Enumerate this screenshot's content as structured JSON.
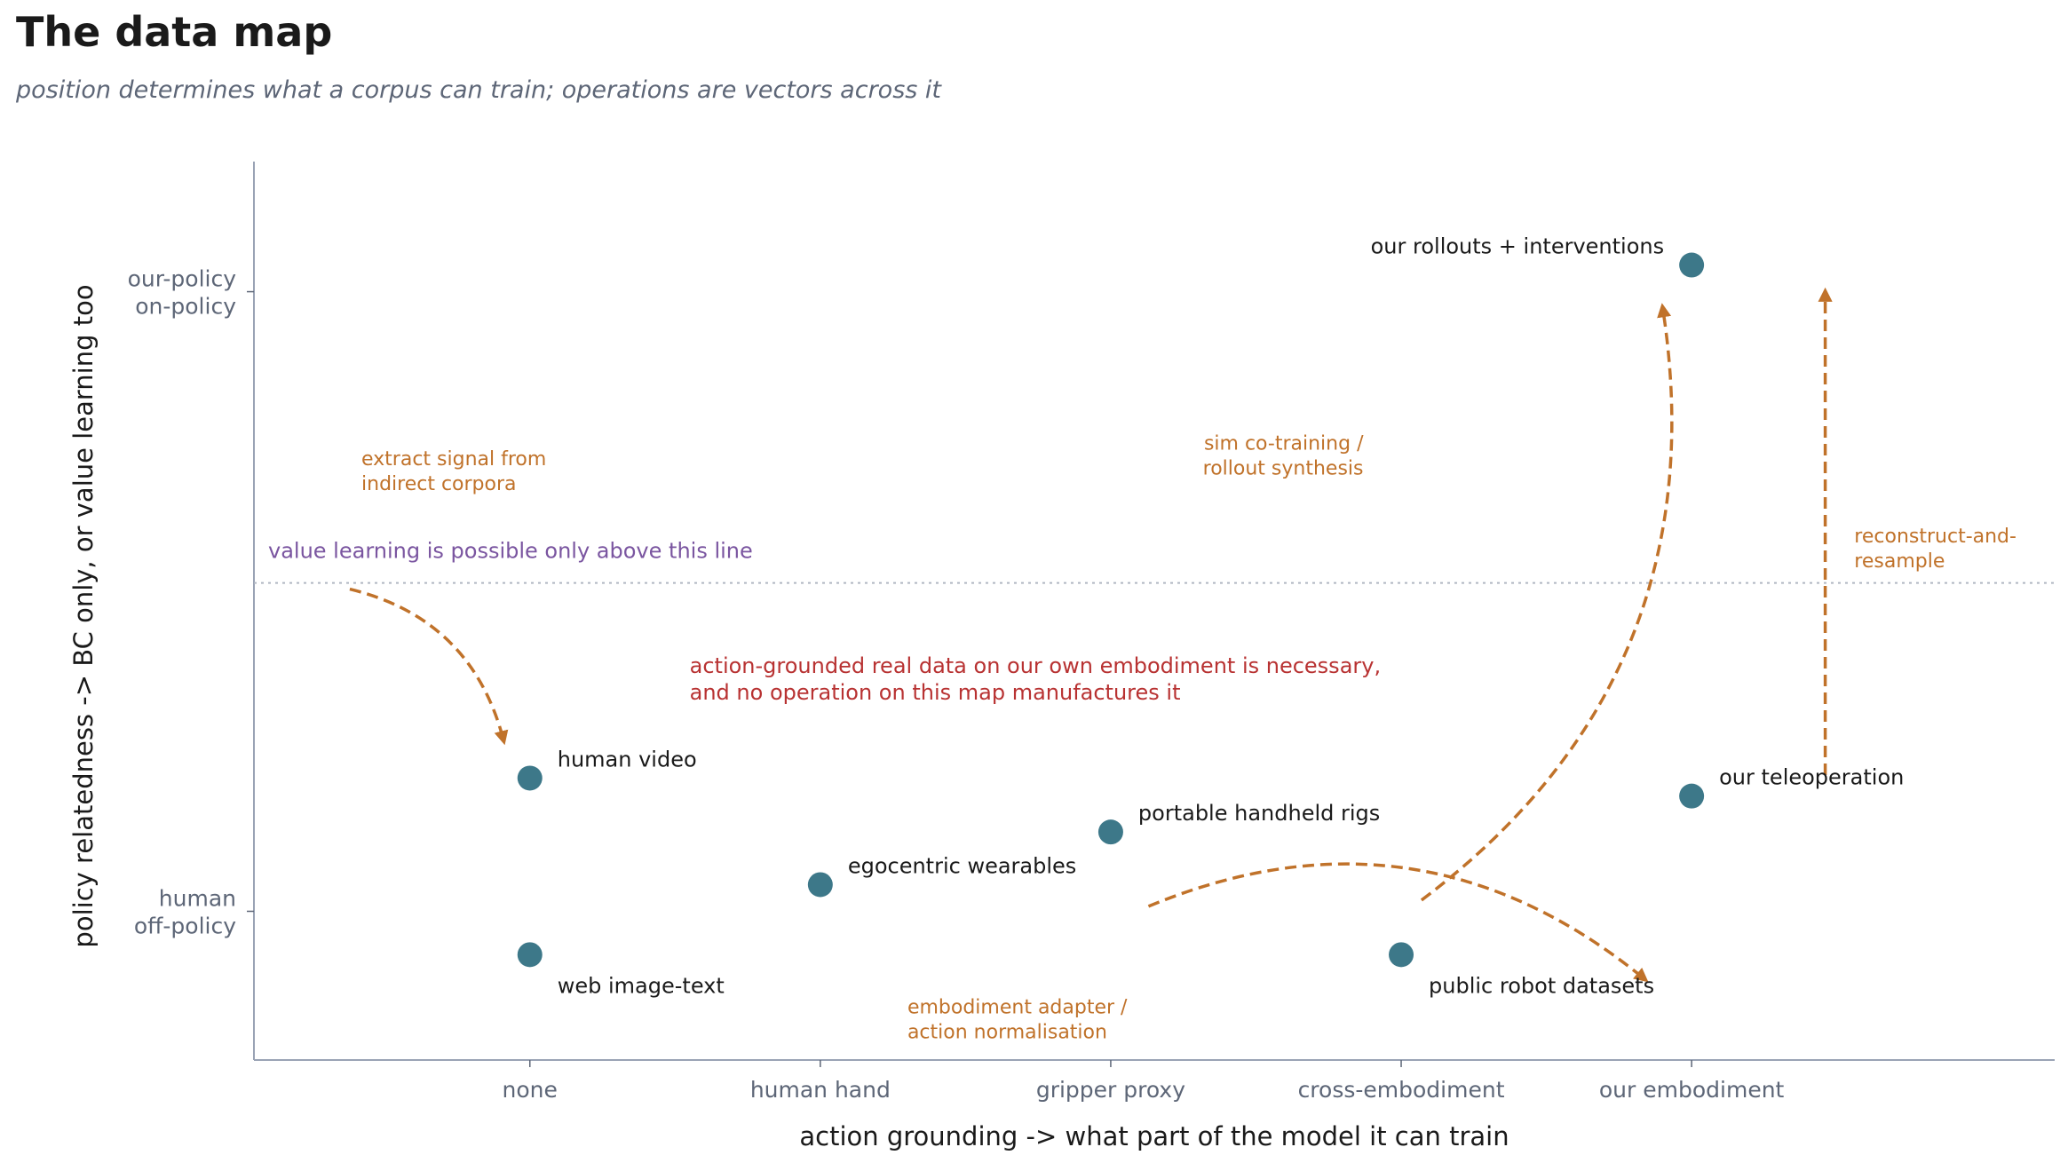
{
  "title": "The data map",
  "subtitle": "position determines what a corpus can train; operations are vectors across it",
  "colors": {
    "point": "#3d7889",
    "operation": "#c0722a",
    "threshold": "#7a55a0",
    "note": "#b83232",
    "axis": "#9aa3b5",
    "text": "#1a1a1a",
    "muted": "#5d6677"
  },
  "chart_data": {
    "type": "scatter",
    "title": "The data map",
    "subtitle": "position determines what a corpus can train; operations are vectors across it",
    "xlabel": "action grounding  ->  what part of the model it can train",
    "ylabel": "policy relatedness  ->  BC only, or value learning too",
    "x_categories": [
      "none",
      "human hand",
      "gripper proxy",
      "cross-embodiment",
      "our embodiment"
    ],
    "y_ticks": [
      {
        "value": 0,
        "lines": [
          "human",
          "off-policy"
        ]
      },
      {
        "value": 1,
        "lines": [
          "our-policy",
          "on-policy"
        ]
      }
    ],
    "xlim": [
      -0.95,
      5.25
    ],
    "ylim": [
      -0.24,
      1.21
    ],
    "grid": false,
    "legend": "none",
    "points": [
      {
        "label": "human video",
        "x": 0,
        "y": 0.215,
        "label_pos": "upper-right"
      },
      {
        "label": "web image-text",
        "x": 0,
        "y": -0.07,
        "label_pos": "lower-right"
      },
      {
        "label": "egocentric wearables",
        "x": 1,
        "y": 0.043,
        "label_pos": "upper-right"
      },
      {
        "label": "portable handheld rigs",
        "x": 2,
        "y": 0.128,
        "label_pos": "upper-right"
      },
      {
        "label": "public robot datasets",
        "x": 3,
        "y": -0.07,
        "label_pos": "lower-right"
      },
      {
        "label": "our teleoperation",
        "x": 4,
        "y": 0.186,
        "label_pos": "upper-right"
      },
      {
        "label": "our rollouts + interventions",
        "x": 4,
        "y": 1.043,
        "label_pos": "upper-left"
      }
    ],
    "threshold": {
      "y": 0.53,
      "label": "value learning is possible only above this line"
    },
    "operations": [
      {
        "label_lines": [
          "extract signal from",
          "indirect corpora"
        ],
        "from": [
          -0.62,
          0.52
        ],
        "to": [
          -0.09,
          0.275
        ],
        "bend": -0.3
      },
      {
        "label_lines": [
          "embodiment adapter /",
          "action normalisation"
        ],
        "from": [
          2.13,
          0.008
        ],
        "to": [
          3.84,
          -0.11
        ],
        "bend": -0.3
      },
      {
        "label_lines": [
          "sim co-training /",
          "rollout synthesis"
        ],
        "from": [
          3.07,
          0.018
        ],
        "to": [
          3.9,
          0.975
        ],
        "bend": 0.3
      },
      {
        "label_lines": [
          "reconstruct-and-",
          "resample"
        ],
        "from": [
          4.46,
          0.22
        ],
        "to": [
          4.46,
          1.0
        ],
        "bend": 0
      }
    ],
    "annotation": {
      "lines": [
        "action-grounded real data on our own embodiment is necessary,",
        "and no operation on this map manufactures it"
      ],
      "x": 0.55,
      "y": 0.385
    }
  }
}
